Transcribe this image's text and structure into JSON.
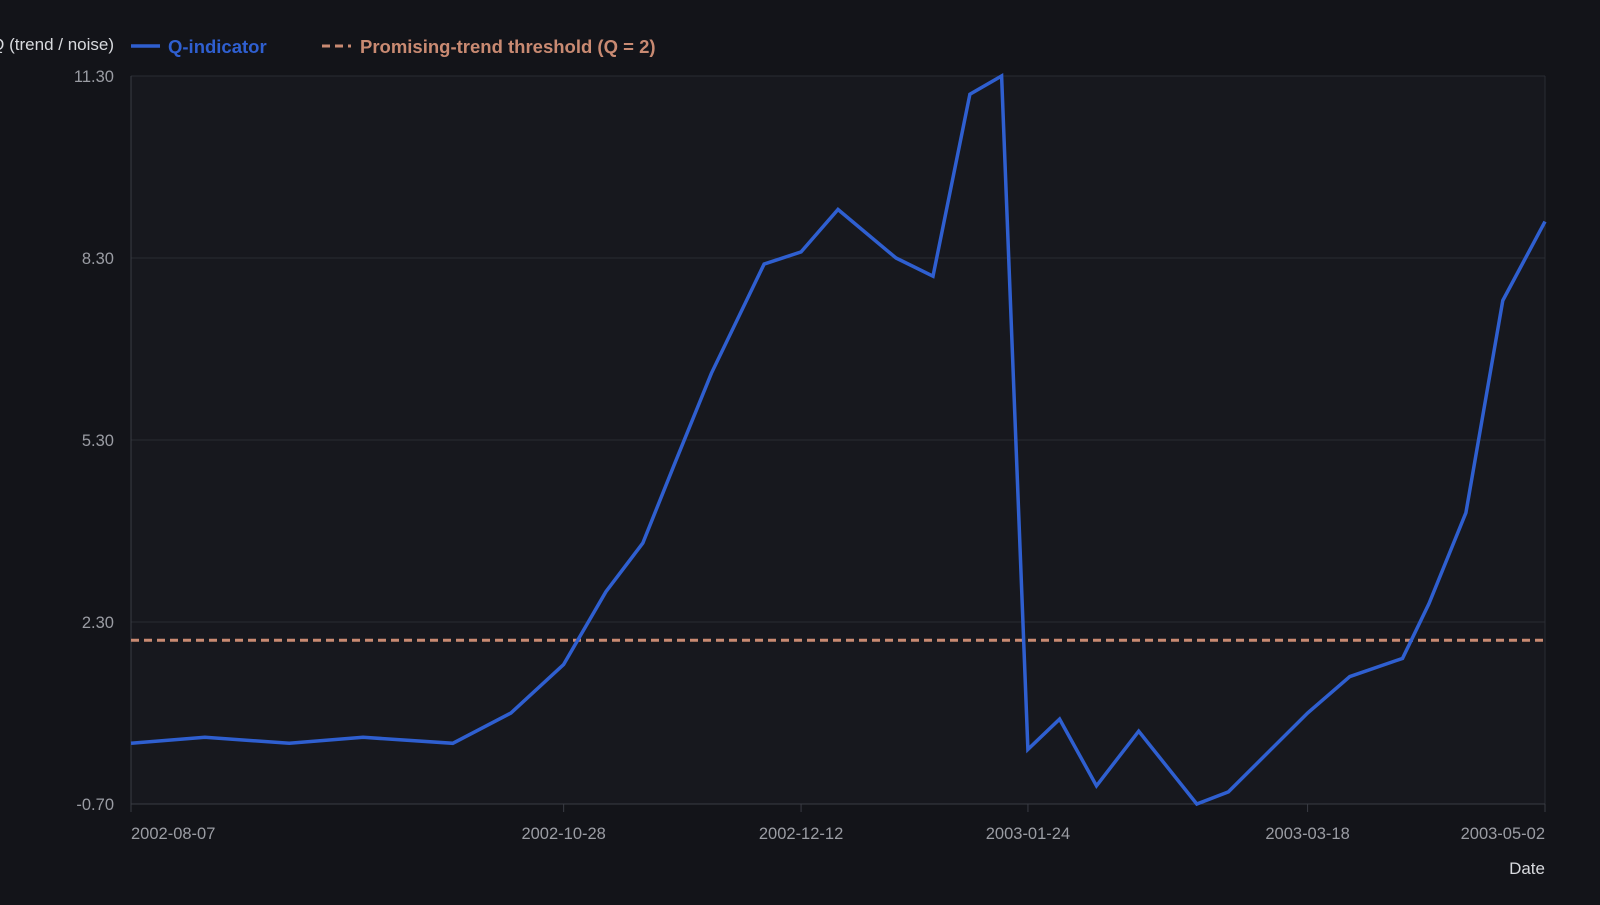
{
  "chart_data": {
    "type": "line",
    "ylabel": "Q (trend / noise)",
    "xlabel": "Date",
    "ylim": [
      -0.7,
      11.3
    ],
    "xlim": [
      "2002-08-07",
      "2003-05-02"
    ],
    "yticks": [
      -0.7,
      2.3,
      5.3,
      8.3,
      11.3
    ],
    "ytick_labels": [
      "-0.70",
      "2.30",
      "5.30",
      "8.30",
      "11.30"
    ],
    "xticks": [
      "2002-08-07",
      "2002-10-28",
      "2002-12-12",
      "2003-01-24",
      "2003-03-18",
      "2003-05-02"
    ],
    "grid": true,
    "legend_position": "top-left",
    "series": [
      {
        "name": "Q-indicator",
        "color": "#2f5fd0",
        "x": [
          "2002-08-07",
          "2002-08-21",
          "2002-09-06",
          "2002-09-20",
          "2002-10-07",
          "2002-10-18",
          "2002-10-28",
          "2002-11-05",
          "2002-11-12",
          "2002-11-18",
          "2002-11-25",
          "2002-12-05",
          "2002-12-12",
          "2002-12-19",
          "2002-12-30",
          "2003-01-06",
          "2003-01-13",
          "2003-01-19",
          "2003-01-24",
          "2003-01-30",
          "2003-02-06",
          "2003-02-14",
          "2003-02-25",
          "2003-03-03",
          "2003-03-18",
          "2003-03-26",
          "2003-04-05",
          "2003-04-10",
          "2003-04-17",
          "2003-04-24",
          "2003-05-02"
        ],
        "y": [
          0.3,
          0.4,
          0.3,
          0.4,
          0.3,
          0.8,
          1.6,
          2.8,
          3.6,
          4.9,
          6.4,
          8.2,
          8.4,
          9.1,
          8.3,
          8.0,
          11.0,
          11.3,
          0.2,
          0.7,
          -0.4,
          0.5,
          -0.7,
          -0.5,
          0.8,
          1.4,
          1.7,
          2.6,
          4.1,
          7.6,
          8.9
        ]
      },
      {
        "name": "Promising-trend threshold (Q = 2)",
        "color": "#c98a72",
        "dash": true,
        "constant_y": 2
      }
    ]
  }
}
